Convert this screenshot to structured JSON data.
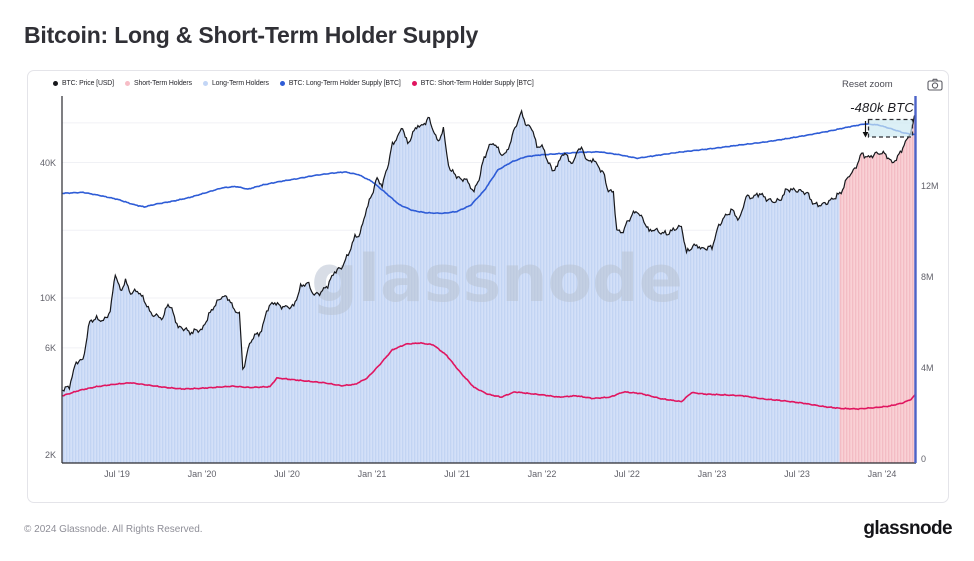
{
  "title": "Bitcoin: Long & Short-Term Holder Supply",
  "controls": {
    "reset_zoom_label": "Reset zoom",
    "camera_icon": "camera-icon"
  },
  "legend": {
    "items": [
      {
        "label": "BTC: Price [USD]",
        "color": "#17181c"
      },
      {
        "label": "Short-Term Holders",
        "color": "#f7bdc6"
      },
      {
        "label": "Long-Term Holders",
        "color": "#c3d6f6"
      },
      {
        "label": "BTC: Long-Term Holder Supply [BTC]",
        "color": "#2e5cd6"
      },
      {
        "label": "BTC: Short-Term Holder Supply [BTC]",
        "color": "#e0155f"
      }
    ]
  },
  "footer": {
    "copyright": "© 2024 Glassnode. All Rights Reserved.",
    "logo_text": "glassnode"
  },
  "chart_data": {
    "type": "line",
    "title": "Bitcoin: Long & Short-Term Holder Supply",
    "watermark": "glassnode",
    "y_left": {
      "scale": "log",
      "unit": "USD",
      "tick_labels": [
        "40K",
        "10K",
        "6K",
        "2K"
      ]
    },
    "y_right": {
      "scale": "linear",
      "unit": "BTC",
      "tick_labels": [
        "12M",
        "8M",
        "4M",
        "0"
      ]
    },
    "x_ticks": [
      [
        2019.5,
        "Jul '19"
      ],
      [
        2020.0,
        "Jan '20"
      ],
      [
        2020.5,
        "Jul '20"
      ],
      [
        2021.0,
        "Jan '21"
      ],
      [
        2021.5,
        "Jul '21"
      ],
      [
        2022.0,
        "Jan '22"
      ],
      [
        2022.5,
        "Jul '22"
      ],
      [
        2023.0,
        "Jan '23"
      ],
      [
        2023.5,
        "Jul '23"
      ],
      [
        2024.0,
        "Jan '24"
      ]
    ],
    "y_left_ticks": [
      [
        40000,
        "40K"
      ],
      [
        10000,
        "10K"
      ],
      [
        6000,
        "6K"
      ],
      [
        2000,
        "2K"
      ]
    ],
    "y_right_ticks": [
      [
        12,
        "12M"
      ],
      [
        8,
        "8M"
      ],
      [
        4,
        "4M"
      ],
      [
        0,
        "0"
      ]
    ],
    "grid_usd": [
      60000,
      40000,
      20000,
      10000,
      6000,
      4000,
      2000
    ],
    "colors": {
      "area_blue_light": "#d3e0f8",
      "area_blue_dark": "#c2d4f3",
      "area_pink_light": "#f9d1d5",
      "area_pink_dark": "#f3bcc4",
      "right_axis": "#4c63c8",
      "grid": "#f0f1f5"
    },
    "regimes": [
      {
        "label": "Long-Term Holders",
        "from": 2019.18,
        "to": 2023.75
      },
      {
        "label": "Short-Term Holders",
        "from": 2023.75,
        "to": 2024.2
      }
    ],
    "annotation": {
      "text": "-480k BTC",
      "t_range": [
        2023.93,
        2024.17
      ],
      "supply_range_m": [
        14.16,
        14.93
      ]
    },
    "series": [
      {
        "name": "BTC: Price [USD]",
        "axis": "left",
        "unit": "USD",
        "color": "#17181c",
        "points": [
          [
            2019.18,
            3900
          ],
          [
            2019.22,
            4050
          ],
          [
            2019.26,
            5200
          ],
          [
            2019.3,
            5300
          ],
          [
            2019.34,
            7900
          ],
          [
            2019.38,
            8100
          ],
          [
            2019.42,
            7900
          ],
          [
            2019.46,
            8700
          ],
          [
            2019.49,
            12900
          ],
          [
            2019.52,
            10700
          ],
          [
            2019.55,
            11900
          ],
          [
            2019.58,
            10500
          ],
          [
            2019.62,
            10800
          ],
          [
            2019.66,
            9800
          ],
          [
            2019.7,
            8500
          ],
          [
            2019.74,
            8300
          ],
          [
            2019.77,
            8100
          ],
          [
            2019.8,
            9500
          ],
          [
            2019.83,
            8600
          ],
          [
            2019.86,
            7400
          ],
          [
            2019.9,
            7300
          ],
          [
            2019.93,
            7000
          ],
          [
            2019.97,
            7200
          ],
          [
            2020.0,
            7200
          ],
          [
            2020.04,
            8400
          ],
          [
            2020.08,
            9400
          ],
          [
            2020.12,
            10200
          ],
          [
            2020.16,
            9900
          ],
          [
            2020.19,
            8800
          ],
          [
            2020.22,
            8600
          ],
          [
            2020.24,
            4800
          ],
          [
            2020.26,
            5400
          ],
          [
            2020.28,
            6300
          ],
          [
            2020.31,
            6800
          ],
          [
            2020.35,
            7100
          ],
          [
            2020.38,
            8800
          ],
          [
            2020.42,
            9600
          ],
          [
            2020.46,
            9200
          ],
          [
            2020.5,
            9100
          ],
          [
            2020.54,
            9200
          ],
          [
            2020.58,
            11200
          ],
          [
            2020.62,
            11700
          ],
          [
            2020.66,
            10300
          ],
          [
            2020.7,
            10600
          ],
          [
            2020.74,
            11400
          ],
          [
            2020.78,
            13100
          ],
          [
            2020.82,
            13600
          ],
          [
            2020.86,
            15600
          ],
          [
            2020.9,
            18700
          ],
          [
            2020.93,
            19200
          ],
          [
            2020.96,
            23800
          ],
          [
            2021.0,
            29000
          ],
          [
            2021.03,
            34000
          ],
          [
            2021.06,
            31500
          ],
          [
            2021.09,
            38000
          ],
          [
            2021.12,
            48000
          ],
          [
            2021.15,
            52000
          ],
          [
            2021.18,
            57500
          ],
          [
            2021.21,
            48000
          ],
          [
            2021.24,
            54000
          ],
          [
            2021.27,
            58500
          ],
          [
            2021.3,
            58000
          ],
          [
            2021.33,
            63500
          ],
          [
            2021.36,
            56000
          ],
          [
            2021.39,
            49000
          ],
          [
            2021.42,
            57000
          ],
          [
            2021.44,
            43000
          ],
          [
            2021.46,
            37000
          ],
          [
            2021.49,
            35500
          ],
          [
            2021.52,
            33500
          ],
          [
            2021.55,
            34000
          ],
          [
            2021.58,
            31000
          ],
          [
            2021.6,
            29800
          ],
          [
            2021.63,
            34000
          ],
          [
            2021.66,
            42000
          ],
          [
            2021.69,
            47500
          ],
          [
            2021.72,
            48800
          ],
          [
            2021.75,
            44500
          ],
          [
            2021.78,
            43000
          ],
          [
            2021.81,
            48000
          ],
          [
            2021.84,
            57000
          ],
          [
            2021.86,
            61500
          ],
          [
            2021.88,
            66900
          ],
          [
            2021.91,
            58000
          ],
          [
            2021.94,
            57500
          ],
          [
            2021.97,
            47000
          ],
          [
            2022.0,
            47500
          ],
          [
            2022.03,
            41500
          ],
          [
            2022.06,
            36800
          ],
          [
            2022.09,
            38500
          ],
          [
            2022.12,
            44000
          ],
          [
            2022.15,
            42500
          ],
          [
            2022.18,
            39000
          ],
          [
            2022.21,
            46000
          ],
          [
            2022.24,
            45500
          ],
          [
            2022.27,
            40000
          ],
          [
            2022.3,
            41500
          ],
          [
            2022.33,
            38500
          ],
          [
            2022.36,
            36000
          ],
          [
            2022.39,
            30000
          ],
          [
            2022.42,
            29500
          ],
          [
            2022.44,
            20000
          ],
          [
            2022.47,
            19500
          ],
          [
            2022.5,
            21500
          ],
          [
            2022.53,
            23500
          ],
          [
            2022.56,
            24300
          ],
          [
            2022.6,
            22000
          ],
          [
            2022.63,
            19800
          ],
          [
            2022.66,
            20200
          ],
          [
            2022.7,
            19500
          ],
          [
            2022.74,
            19300
          ],
          [
            2022.78,
            20300
          ],
          [
            2022.82,
            20800
          ],
          [
            2022.85,
            15900
          ],
          [
            2022.88,
            16800
          ],
          [
            2022.91,
            17200
          ],
          [
            2022.94,
            16500
          ],
          [
            2022.97,
            16700
          ],
          [
            2023.0,
            16800
          ],
          [
            2023.04,
            21000
          ],
          [
            2023.08,
            23200
          ],
          [
            2023.12,
            24600
          ],
          [
            2023.16,
            22100
          ],
          [
            2023.2,
            28200
          ],
          [
            2023.24,
            28000
          ],
          [
            2023.28,
            29200
          ],
          [
            2023.32,
            27600
          ],
          [
            2023.36,
            26800
          ],
          [
            2023.4,
            27200
          ],
          [
            2023.44,
            30400
          ],
          [
            2023.48,
            30200
          ],
          [
            2023.52,
            29900
          ],
          [
            2023.56,
            29200
          ],
          [
            2023.6,
            26100
          ],
          [
            2023.64,
            25900
          ],
          [
            2023.68,
            26600
          ],
          [
            2023.72,
            27900
          ],
          [
            2023.76,
            29500
          ],
          [
            2023.8,
            34600
          ],
          [
            2023.84,
            37300
          ],
          [
            2023.88,
            43800
          ],
          [
            2023.92,
            42000
          ],
          [
            2023.96,
            43700
          ],
          [
            2024.0,
            44200
          ],
          [
            2024.03,
            42900
          ],
          [
            2024.06,
            39600
          ],
          [
            2024.1,
            43100
          ],
          [
            2024.13,
            48000
          ],
          [
            2024.16,
            52500
          ],
          [
            2024.19,
            62500
          ],
          [
            2024.2,
            66500
          ]
        ]
      },
      {
        "name": "BTC: Long-Term Holder Supply [BTC]",
        "axis": "right",
        "unit": "M BTC",
        "color": "#2e5cd6",
        "points": [
          [
            2019.18,
            11.68
          ],
          [
            2019.3,
            11.72
          ],
          [
            2019.4,
            11.58
          ],
          [
            2019.5,
            11.42
          ],
          [
            2019.6,
            11.18
          ],
          [
            2019.66,
            11.08
          ],
          [
            2019.74,
            11.22
          ],
          [
            2019.82,
            11.32
          ],
          [
            2019.92,
            11.48
          ],
          [
            2020.02,
            11.7
          ],
          [
            2020.12,
            11.92
          ],
          [
            2020.2,
            11.98
          ],
          [
            2020.27,
            11.86
          ],
          [
            2020.36,
            12.05
          ],
          [
            2020.46,
            12.2
          ],
          [
            2020.56,
            12.32
          ],
          [
            2020.66,
            12.46
          ],
          [
            2020.76,
            12.56
          ],
          [
            2020.84,
            12.62
          ],
          [
            2020.92,
            12.5
          ],
          [
            2021.0,
            12.2
          ],
          [
            2021.08,
            11.7
          ],
          [
            2021.16,
            11.18
          ],
          [
            2021.24,
            10.92
          ],
          [
            2021.32,
            10.82
          ],
          [
            2021.42,
            10.8
          ],
          [
            2021.5,
            10.88
          ],
          [
            2021.58,
            11.15
          ],
          [
            2021.66,
            11.8
          ],
          [
            2021.74,
            12.7
          ],
          [
            2021.82,
            13.05
          ],
          [
            2021.9,
            13.28
          ],
          [
            2021.98,
            13.36
          ],
          [
            2022.1,
            13.42
          ],
          [
            2022.22,
            13.48
          ],
          [
            2022.34,
            13.5
          ],
          [
            2022.45,
            13.38
          ],
          [
            2022.56,
            13.22
          ],
          [
            2022.68,
            13.35
          ],
          [
            2022.8,
            13.48
          ],
          [
            2022.92,
            13.58
          ],
          [
            2023.04,
            13.68
          ],
          [
            2023.16,
            13.8
          ],
          [
            2023.3,
            13.92
          ],
          [
            2023.44,
            14.08
          ],
          [
            2023.58,
            14.26
          ],
          [
            2023.72,
            14.46
          ],
          [
            2023.82,
            14.62
          ],
          [
            2023.9,
            14.73
          ],
          [
            2023.98,
            14.68
          ],
          [
            2024.06,
            14.5
          ],
          [
            2024.13,
            14.33
          ],
          [
            2024.17,
            14.28
          ],
          [
            2024.2,
            14.25
          ]
        ]
      },
      {
        "name": "BTC: Short-Term Holder Supply [BTC]",
        "axis": "right",
        "unit": "M BTC",
        "color": "#e0155f",
        "points": [
          [
            2019.18,
            2.78
          ],
          [
            2019.28,
            3.02
          ],
          [
            2019.38,
            3.18
          ],
          [
            2019.48,
            3.28
          ],
          [
            2019.58,
            3.35
          ],
          [
            2019.68,
            3.25
          ],
          [
            2019.78,
            3.15
          ],
          [
            2019.88,
            3.08
          ],
          [
            2019.98,
            3.1
          ],
          [
            2020.08,
            3.15
          ],
          [
            2020.18,
            3.2
          ],
          [
            2020.28,
            3.14
          ],
          [
            2020.4,
            3.18
          ],
          [
            2020.44,
            3.56
          ],
          [
            2020.52,
            3.5
          ],
          [
            2020.62,
            3.42
          ],
          [
            2020.72,
            3.35
          ],
          [
            2020.82,
            3.22
          ],
          [
            2020.9,
            3.28
          ],
          [
            2020.97,
            3.55
          ],
          [
            2021.04,
            4.1
          ],
          [
            2021.12,
            4.8
          ],
          [
            2021.2,
            5.05
          ],
          [
            2021.28,
            5.1
          ],
          [
            2021.36,
            5.02
          ],
          [
            2021.44,
            4.55
          ],
          [
            2021.52,
            3.8
          ],
          [
            2021.6,
            3.15
          ],
          [
            2021.68,
            2.85
          ],
          [
            2021.76,
            2.72
          ],
          [
            2021.84,
            2.95
          ],
          [
            2021.92,
            2.88
          ],
          [
            2022.0,
            2.82
          ],
          [
            2022.1,
            2.72
          ],
          [
            2022.2,
            2.78
          ],
          [
            2022.3,
            2.66
          ],
          [
            2022.4,
            2.72
          ],
          [
            2022.48,
            2.95
          ],
          [
            2022.58,
            2.88
          ],
          [
            2022.7,
            2.65
          ],
          [
            2022.82,
            2.52
          ],
          [
            2022.88,
            2.92
          ],
          [
            2022.96,
            2.85
          ],
          [
            2023.06,
            2.82
          ],
          [
            2023.18,
            2.78
          ],
          [
            2023.3,
            2.64
          ],
          [
            2023.42,
            2.56
          ],
          [
            2023.54,
            2.45
          ],
          [
            2023.66,
            2.3
          ],
          [
            2023.76,
            2.22
          ],
          [
            2023.86,
            2.2
          ],
          [
            2023.96,
            2.26
          ],
          [
            2024.04,
            2.32
          ],
          [
            2024.12,
            2.46
          ],
          [
            2024.17,
            2.62
          ],
          [
            2024.2,
            2.85
          ]
        ]
      }
    ]
  }
}
